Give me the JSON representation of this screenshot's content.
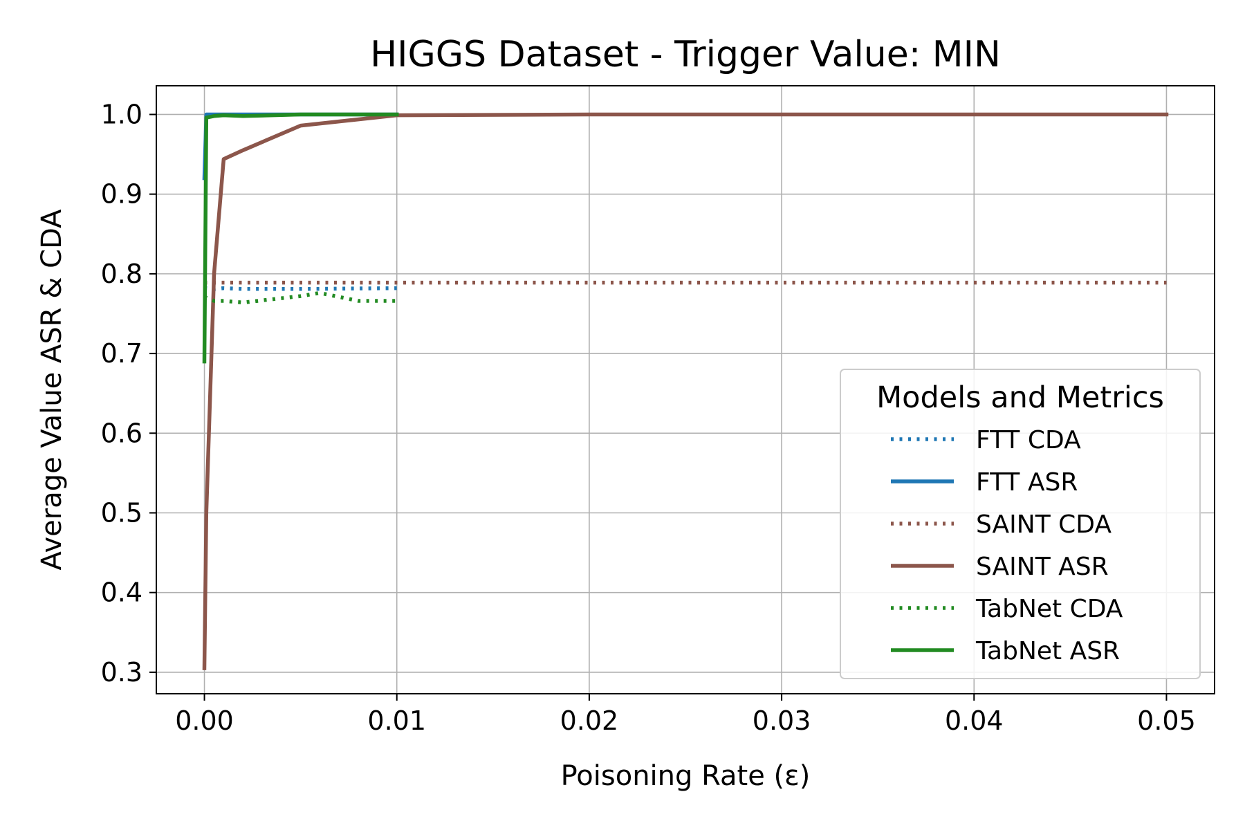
{
  "chart_data": {
    "type": "line",
    "title": "HIGGS Dataset - Trigger Value: MIN",
    "xlabel": "Poisoning Rate (ε)",
    "ylabel": "Average Value ASR & CDA",
    "xlim": [
      -0.0025,
      0.0525
    ],
    "ylim": [
      0.273,
      1.036
    ],
    "x_ticks": [
      0.0,
      0.01,
      0.02,
      0.03,
      0.04,
      0.05
    ],
    "x_tick_labels": [
      "0.00",
      "0.01",
      "0.02",
      "0.03",
      "0.04",
      "0.05"
    ],
    "y_ticks": [
      0.3,
      0.4,
      0.5,
      0.6,
      0.7,
      0.8,
      0.9,
      1.0
    ],
    "y_tick_labels": [
      "0.3",
      "0.4",
      "0.5",
      "0.6",
      "0.7",
      "0.8",
      "0.9",
      "1.0"
    ],
    "grid": true,
    "legend": {
      "title": "Models and Metrics",
      "placement": "lower-right"
    },
    "series": [
      {
        "name": "FTT CDA",
        "color": "#1f77b4",
        "style": "dotted",
        "x": [
          0.0,
          0.0001,
          0.0005,
          0.001,
          0.002,
          0.005,
          0.01
        ],
        "y": [
          0.781,
          0.782,
          0.781,
          0.782,
          0.781,
          0.781,
          0.782
        ]
      },
      {
        "name": "FTT ASR",
        "color": "#1f77b4",
        "style": "solid",
        "x": [
          0.0,
          0.0001,
          0.0005,
          0.001,
          0.002,
          0.005,
          0.01
        ],
        "y": [
          0.92,
          1.0,
          1.0,
          1.0,
          1.0,
          1.0,
          1.0
        ]
      },
      {
        "name": "SAINT CDA",
        "color": "#8c564b",
        "style": "dotted",
        "x": [
          0.0,
          0.0001,
          0.0005,
          0.001,
          0.002,
          0.005,
          0.01,
          0.02,
          0.03,
          0.04,
          0.05
        ],
        "y": [
          0.789,
          0.789,
          0.789,
          0.789,
          0.789,
          0.789,
          0.789,
          0.789,
          0.789,
          0.789,
          0.789
        ]
      },
      {
        "name": "SAINT ASR",
        "color": "#8c564b",
        "style": "solid",
        "x": [
          0.0,
          0.0001,
          0.0005,
          0.001,
          0.002,
          0.005,
          0.01,
          0.02,
          0.03,
          0.04,
          0.05
        ],
        "y": [
          0.305,
          0.5,
          0.8,
          0.944,
          0.955,
          0.986,
          0.999,
          1.0,
          1.0,
          1.0,
          1.0
        ]
      },
      {
        "name": "TabNet CDA",
        "color": "#228b22",
        "style": "dotted",
        "x": [
          0.0,
          0.0001,
          0.0005,
          0.001,
          0.002,
          0.005,
          0.006,
          0.007,
          0.008,
          0.01
        ],
        "y": [
          0.769,
          0.77,
          0.766,
          0.766,
          0.764,
          0.772,
          0.776,
          0.771,
          0.766,
          0.766
        ]
      },
      {
        "name": "TabNet ASR",
        "color": "#228b22",
        "style": "solid",
        "x": [
          0.0,
          0.0001,
          0.0005,
          0.001,
          0.002,
          0.005,
          0.01
        ],
        "y": [
          0.69,
          0.996,
          0.998,
          0.999,
          0.998,
          1.0,
          1.0
        ]
      }
    ]
  }
}
